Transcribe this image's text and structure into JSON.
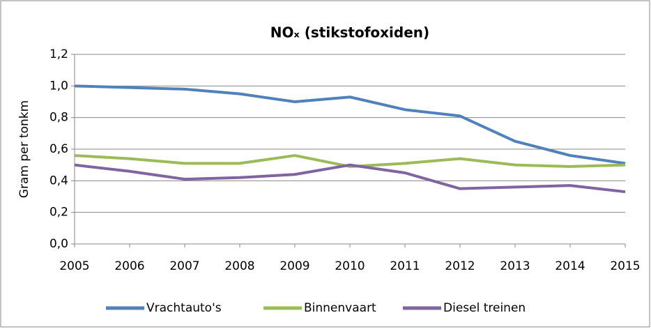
{
  "chart_data": {
    "type": "line",
    "title": "NOₓ (stikstofoxiden)",
    "y_label": "Gram per tonkm",
    "x": [
      2005,
      2006,
      2007,
      2008,
      2009,
      2010,
      2011,
      2012,
      2013,
      2014,
      2015
    ],
    "xlim": [
      2005,
      2015
    ],
    "xticks": [
      2005,
      2006,
      2007,
      2008,
      2009,
      2010,
      2011,
      2012,
      2013,
      2014,
      2015
    ],
    "ylim": [
      0,
      1.2
    ],
    "yticks": [
      {
        "value": 0,
        "label": "0,0"
      },
      {
        "value": 0.2,
        "label": "0,2"
      },
      {
        "value": 0.4,
        "label": "0,4"
      },
      {
        "value": 0.6,
        "label": "0,6"
      },
      {
        "value": 0.8,
        "label": "0,8"
      },
      {
        "value": 1.0,
        "label": "1,0"
      },
      {
        "value": 1.2,
        "label": "1,2"
      }
    ],
    "grid": true,
    "legend": "bottom",
    "series": [
      {
        "name": "Vrachtauto's",
        "color": "#4f81bd",
        "values": [
          1.0,
          0.99,
          0.98,
          0.95,
          0.9,
          0.93,
          0.85,
          0.81,
          0.65,
          0.56,
          0.51
        ]
      },
      {
        "name": "Binnenvaart",
        "color": "#9bbb59",
        "values": [
          0.56,
          0.54,
          0.51,
          0.51,
          0.56,
          0.49,
          0.51,
          0.54,
          0.5,
          0.49,
          0.5
        ]
      },
      {
        "name": "Diesel treinen",
        "color": "#8064a2",
        "values": [
          0.5,
          0.46,
          0.41,
          0.42,
          0.44,
          0.5,
          0.45,
          0.35,
          0.36,
          0.37,
          0.33
        ]
      }
    ]
  }
}
